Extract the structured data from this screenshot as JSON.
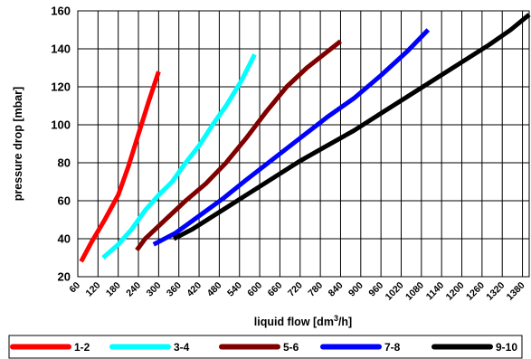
{
  "chart_data": {
    "type": "line",
    "xlabel": "liquid flow [dm",
    "xlabel_sup": "3",
    "xlabel_end": "/h]",
    "ylabel": "pressure drop [mbar]",
    "xlim": [
      60,
      1400
    ],
    "ylim": [
      20,
      160
    ],
    "x_ticks": [
      60,
      120,
      180,
      240,
      300,
      360,
      420,
      480,
      540,
      600,
      660,
      720,
      780,
      840,
      900,
      960,
      1020,
      1080,
      1140,
      1200,
      1260,
      1320,
      1380
    ],
    "y_ticks": [
      20,
      40,
      60,
      80,
      100,
      120,
      140,
      160
    ],
    "grid": true,
    "legend_position": "bottom",
    "series": [
      {
        "name": "1-2",
        "color": "#ff0000",
        "x": [
          70,
          100,
          140,
          180,
          210,
          240,
          270,
          300
        ],
        "y": [
          28,
          38,
          50,
          63,
          78,
          95,
          112,
          128
        ]
      },
      {
        "name": "3-4",
        "color": "#00ffff",
        "x": [
          135,
          180,
          220,
          260,
          300,
          340,
          380,
          420,
          460,
          500,
          545,
          585
        ],
        "y": [
          30,
          37,
          45,
          55,
          63,
          70,
          80,
          89,
          100,
          110,
          123,
          137
        ]
      },
      {
        "name": "5-6",
        "color": "#800000",
        "x": [
          235,
          260,
          320,
          380,
          440,
          500,
          560,
          620,
          680,
          740,
          790,
          840
        ],
        "y": [
          34,
          40,
          50,
          60,
          69,
          80,
          93,
          107,
          120,
          130,
          137,
          144
        ]
      },
      {
        "name": "7-8",
        "color": "#0000ff",
        "x": [
          285,
          350,
          420,
          490,
          560,
          640,
          720,
          800,
          880,
          960,
          1040,
          1100
        ],
        "y": [
          37,
          43,
          52,
          61,
          71,
          82,
          93,
          104,
          114,
          126,
          139,
          150
        ]
      },
      {
        "name": "9-10",
        "color": "#000000",
        "x": [
          345,
          400,
          480,
          560,
          640,
          720,
          800,
          880,
          960,
          1040,
          1120,
          1200,
          1280,
          1345,
          1400
        ],
        "y": [
          40,
          45,
          54,
          63,
          72,
          81,
          89,
          97,
          106,
          115,
          124,
          133,
          142,
          150,
          158
        ]
      }
    ]
  }
}
